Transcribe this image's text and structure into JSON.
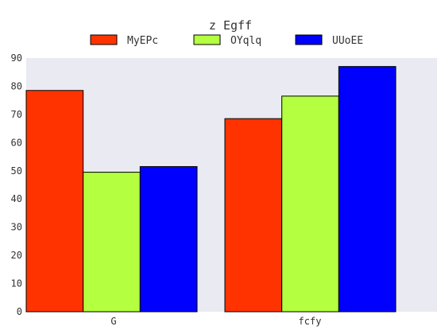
{
  "chart_data": {
    "type": "bar",
    "title": "z Egff",
    "xlabel": "",
    "ylabel": "",
    "categories": [
      "G",
      "fcfy"
    ],
    "series": [
      {
        "name": "MyEPc",
        "values": [
          78.5,
          68.5
        ],
        "color": "#ff3300"
      },
      {
        "name": "OYqlq",
        "values": [
          49.5,
          76.5
        ],
        "color": "#b3ff40"
      },
      {
        "name": "UUoEE",
        "values": [
          51.5,
          87.0
        ],
        "color": "#0000ff"
      }
    ],
    "ylim": [
      0,
      90
    ],
    "yticks": [
      0,
      10,
      20,
      30,
      40,
      50,
      60,
      70,
      80,
      90
    ],
    "grid": false,
    "legend_position": "top-center",
    "plot_background": "#eaeaf2"
  }
}
